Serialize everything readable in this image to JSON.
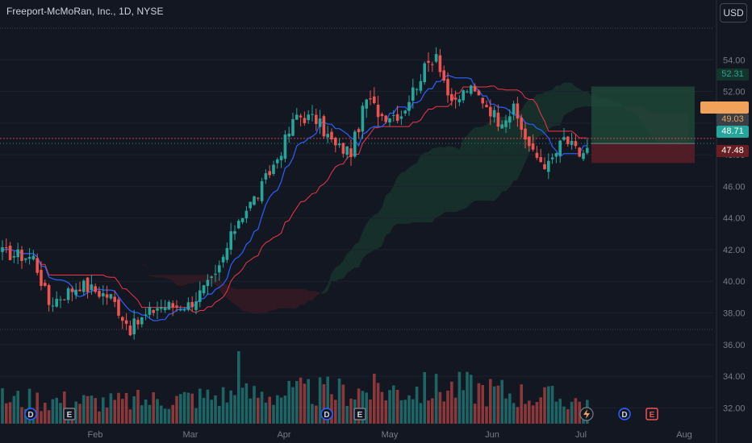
{
  "header": {
    "title": "Freeport-McMoRan, Inc., 1D, NYSE",
    "currency": "USD"
  },
  "price_tags": {
    "target": "52.31",
    "last": "49.03",
    "current": "48.71",
    "stop": "47.48"
  },
  "events": {
    "dividend": "D",
    "earnings": "E"
  },
  "colors": {
    "up": "#26a69a",
    "down": "#ef5350",
    "background": "#131722",
    "tenkan": "#2962ff",
    "kijun": "#f23645",
    "cloud_bull": "#1b4332",
    "cloud_bear": "#4a1c24",
    "target_zone": "#1f4a3a",
    "stop_zone": "#5c1f27",
    "last_tag": "#f0a15a"
  },
  "chart_data": {
    "type": "candlestick",
    "ylim": [
      31,
      56
    ],
    "yticks": [
      "54.00",
      "52.00",
      "50.00",
      "48.00",
      "46.00",
      "44.00",
      "42.00",
      "40.00",
      "38.00",
      "36.00",
      "34.00",
      "32.00"
    ],
    "x_labels": [
      "Feb",
      "Mar",
      "Apr",
      "May",
      "Jun",
      "Jul",
      "Aug"
    ],
    "ohlc_keypoints": [
      [
        0,
        41.8
      ],
      [
        8,
        41.5
      ],
      [
        12,
        38.6
      ],
      [
        20,
        39.8
      ],
      [
        28,
        39.0
      ],
      [
        33,
        37.0
      ],
      [
        40,
        38.4
      ],
      [
        48,
        38.5
      ],
      [
        55,
        40.2
      ],
      [
        61,
        44.0
      ],
      [
        66,
        45.5
      ],
      [
        71,
        47.8
      ],
      [
        76,
        50.5
      ],
      [
        81,
        50.2
      ],
      [
        86,
        48.5
      ],
      [
        90,
        48.2
      ],
      [
        94,
        51.5
      ],
      [
        98,
        50.5
      ],
      [
        103,
        50.6
      ],
      [
        108,
        53.0
      ],
      [
        112,
        54.5
      ],
      [
        116,
        51.0
      ],
      [
        120,
        52.2
      ],
      [
        124,
        51.5
      ],
      [
        128,
        50.2
      ],
      [
        132,
        50.8
      ],
      [
        137,
        48.0
      ],
      [
        141,
        47.3
      ],
      [
        145,
        49.0
      ],
      [
        149,
        48.0
      ],
      [
        151,
        48.3
      ]
    ],
    "volume_keypoints": [
      [
        0,
        0.35
      ],
      [
        30,
        0.3
      ],
      [
        60,
        0.4
      ],
      [
        90,
        0.45
      ],
      [
        120,
        0.5
      ],
      [
        151,
        0.3
      ]
    ],
    "position": {
      "entry": 48.71,
      "target": 52.31,
      "stop": 47.48
    },
    "last_price": 49.03
  }
}
